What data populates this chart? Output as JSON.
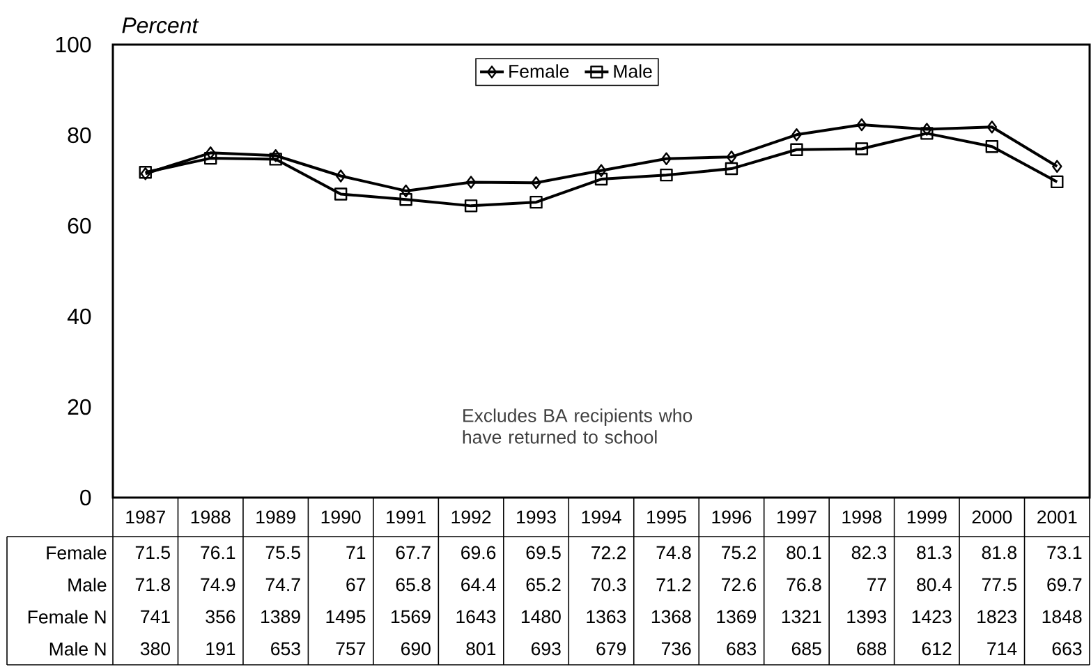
{
  "chart_data": {
    "type": "line",
    "ylabel": "Percent",
    "categories": [
      "1987",
      "1988",
      "1989",
      "1990",
      "1991",
      "1992",
      "1993",
      "1994",
      "1995",
      "1996",
      "1997",
      "1998",
      "1999",
      "2000",
      "2001"
    ],
    "series": [
      {
        "name": "Female",
        "color": "#000000",
        "marker": "diamond",
        "values": [
          71.5,
          76.1,
          75.5,
          71,
          67.7,
          69.6,
          69.5,
          72.2,
          74.8,
          75.2,
          80.1,
          82.3,
          81.3,
          81.8,
          73.1
        ]
      },
      {
        "name": "Male",
        "color": "#000000",
        "marker": "square",
        "values": [
          71.8,
          74.9,
          74.7,
          67,
          65.8,
          64.4,
          65.2,
          70.3,
          71.2,
          72.6,
          76.8,
          77,
          80.4,
          77.5,
          69.7
        ]
      }
    ],
    "ylim": [
      0,
      100
    ],
    "yticks": [
      0,
      20,
      40,
      60,
      80,
      100
    ],
    "legend": "top",
    "line_style": "solid",
    "data_labels": true,
    "annotations": [
      "Excludes BA recipients who have returned to school",
      "Female N",
      "741",
      "356",
      "1389",
      "1495",
      "1569",
      "1643",
      "1480",
      "1363",
      "1368",
      "1369",
      "1321",
      "1393",
      "1423",
      "1823",
      "1848",
      "Male N",
      "380",
      "191",
      "653",
      "757",
      "690",
      "801",
      "693",
      "679",
      "736",
      "683",
      "685",
      "688",
      "612",
      "714",
      "663"
    ]
  }
}
